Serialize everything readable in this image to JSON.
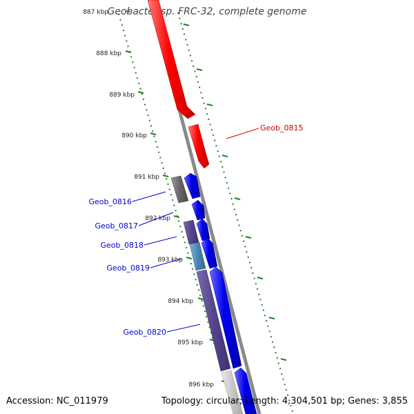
{
  "title": "Geobacter sp. FRC-32, complete genome",
  "footer": {
    "accession": "Accession: NC_011979",
    "summary": "Topology: circular; Length: 4,304,501 bp; Genes: 3,855"
  },
  "ticks": [
    "887 kbp",
    "888 kbp",
    "889 kbp",
    "890 kbp",
    "891 kbp",
    "892 kbp",
    "893 kbp",
    "894 kbp",
    "895 kbp",
    "896 kbp"
  ],
  "genes": {
    "geob_0815": "Geob_0815",
    "geob_0816": "Geob_0816",
    "geob_0817": "Geob_0817",
    "geob_0818": "Geob_0818",
    "geob_0819": "Geob_0819",
    "geob_0820": "Geob_0820"
  },
  "colors": {
    "backbone": "#8a8a8a",
    "tick_dots": "#1f7f1f",
    "gene_red": "#ff0000",
    "gene_blue": "#0000ee",
    "gene_grey": "#666666",
    "gene_purple": "#55448c",
    "gene_teal": "#4a86b4",
    "gene_light": "#c8c8c8",
    "label_red": "#cc0000",
    "label_blue": "#0000cc"
  }
}
